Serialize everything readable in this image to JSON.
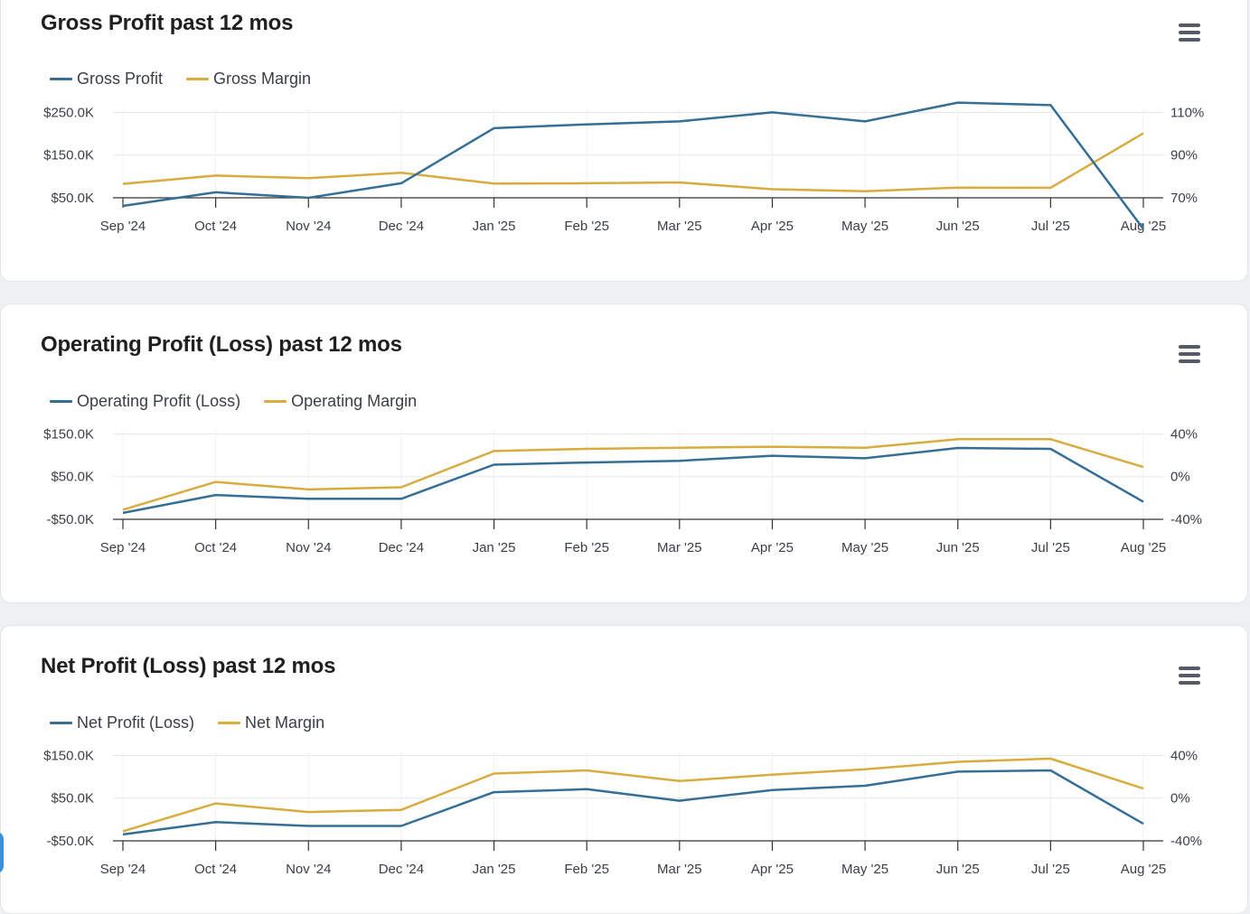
{
  "charts": [
    {
      "title": "Gross Profit past 12 mos",
      "legend": [
        {
          "label": "Gross Profit",
          "color": "#356f96"
        },
        {
          "label": "Gross Margin",
          "color": "#d8ac3f"
        }
      ],
      "chart_data": {
        "type": "line",
        "categories": [
          "Sep '24",
          "Oct '24",
          "Nov '24",
          "Dec '24",
          "Jan '25",
          "Feb '25",
          "Mar '25",
          "Apr '25",
          "May '25",
          "Jun '25",
          "Jul '25",
          "Aug '25"
        ],
        "series": [
          {
            "name": "Gross Profit",
            "axis": "left",
            "color": "#356f96",
            "values": [
              31,
              63,
              50,
              84,
              213,
              222,
              229,
              250,
              229,
              273,
              267,
              -23
            ]
          },
          {
            "name": "Gross Margin",
            "axis": "right",
            "color": "#d8ac3f",
            "values": [
              76.5,
              80.4,
              79.2,
              81.7,
              76.7,
              76.8,
              77.2,
              74.0,
              73.1,
              74.8,
              74.7,
              100.2
            ]
          }
        ],
        "y_left": {
          "min": 0,
          "max": 300,
          "ticks": [
            50,
            150,
            250
          ],
          "tick_labels": [
            "$50.0K",
            "$150.0K",
            "$250.0K"
          ]
        },
        "y_right": {
          "min": 70,
          "max": 110,
          "ticks": [
            70,
            90,
            110
          ],
          "tick_labels": [
            "70%",
            "90%",
            "110%"
          ]
        },
        "grid": true
      }
    },
    {
      "title": "Operating Profit (Loss) past 12 mos",
      "legend": [
        {
          "label": "Operating Profit (Loss)",
          "color": "#356f96"
        },
        {
          "label": "Operating Margin",
          "color": "#d8ac3f"
        }
      ],
      "chart_data": {
        "type": "line",
        "categories": [
          "Sep '24",
          "Oct '24",
          "Nov '24",
          "Dec '24",
          "Jan '25",
          "Feb '25",
          "Mar '25",
          "Apr '25",
          "May '25",
          "Jun '25",
          "Jul '25",
          "Aug '25"
        ],
        "series": [
          {
            "name": "Operating Profit (Loss)",
            "axis": "left",
            "color": "#356f96",
            "values": [
              -35,
              7,
              -2,
              -2,
              78,
              83,
              87,
              99,
              93,
              117,
              115,
              -9
            ]
          },
          {
            "name": "Operating Margin",
            "axis": "right",
            "color": "#d8ac3f",
            "values": [
              -31,
              -5,
              -12,
              -10,
              24,
              26,
              27,
              28,
              27,
              35,
              35,
              9
            ]
          }
        ],
        "y_left": {
          "min": -50,
          "max": 150,
          "ticks": [
            -50,
            50,
            150
          ],
          "tick_labels": [
            "-$50.0K",
            "$50.0K",
            "$150.0K"
          ]
        },
        "y_right": {
          "min": -40,
          "max": 40,
          "ticks": [
            -40,
            0,
            40
          ],
          "tick_labels": [
            "-40%",
            "0%",
            "40%"
          ]
        },
        "grid": true
      }
    },
    {
      "title": "Net Profit (Loss) past 12 mos",
      "legend": [
        {
          "label": "Net Profit (Loss)",
          "color": "#356f96"
        },
        {
          "label": "Net Margin",
          "color": "#d8ac3f"
        }
      ],
      "chart_data": {
        "type": "line",
        "categories": [
          "Sep '24",
          "Oct '24",
          "Nov '24",
          "Dec '24",
          "Jan '25",
          "Feb '25",
          "Mar '25",
          "Apr '25",
          "May '25",
          "Jun '25",
          "Jul '25",
          "Aug '25"
        ],
        "series": [
          {
            "name": "Net Profit (Loss)",
            "axis": "left",
            "color": "#356f96",
            "values": [
              -35,
              -6,
              -15,
              -15,
              64,
              71,
              44,
              69,
              79,
              112,
              115,
              -10
            ]
          },
          {
            "name": "Net Margin",
            "axis": "right",
            "color": "#d8ac3f",
            "values": [
              -31,
              -5,
              -13,
              -11,
              23,
              26,
              16,
              22,
              27,
              34,
              37,
              9
            ]
          }
        ],
        "y_left": {
          "min": -50,
          "max": 150,
          "ticks": [
            -50,
            50,
            150
          ],
          "tick_labels": [
            "-$50.0K",
            "$50.0K",
            "$150.0K"
          ]
        },
        "y_right": {
          "min": -40,
          "max": 40,
          "ticks": [
            -40,
            0,
            40
          ],
          "tick_labels": [
            "-40%",
            "0%",
            "40%"
          ]
        },
        "grid": true
      }
    }
  ]
}
